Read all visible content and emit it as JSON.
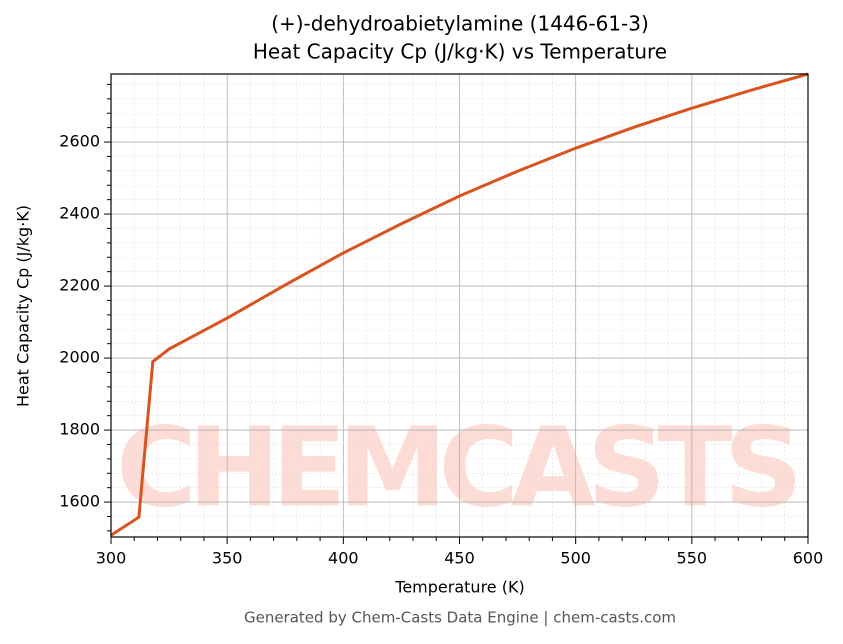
{
  "chart_data": {
    "type": "line",
    "title": [
      "(+)-dehydroabietylamine (1446-61-3)",
      "Heat Capacity Cp (J/kg·K) vs Temperature"
    ],
    "xlabel": "Temperature (K)",
    "ylabel": "Heat Capacity Cp (J/kg·K)",
    "footer": "Generated by Chem-Casts Data Engine | chem-casts.com",
    "watermark": "CHEMCASTS",
    "x": [
      300,
      312,
      318,
      325,
      350,
      375,
      400,
      425,
      450,
      475,
      500,
      525,
      550,
      575,
      600
    ],
    "series": [
      {
        "name": "Cp",
        "color": "#d9531e",
        "values": [
          1508,
          1558,
          1990,
          2025,
          2111,
          2203,
          2292,
          2373,
          2450,
          2519,
          2583,
          2641,
          2694,
          2743,
          2789
        ]
      }
    ],
    "xlim": [
      300,
      600
    ],
    "ylim": [
      1503,
      2789
    ],
    "xticks": [
      300,
      350,
      400,
      450,
      500,
      550,
      600
    ],
    "yticks": [
      1600,
      1800,
      2000,
      2200,
      2400,
      2600
    ],
    "xminorticks": [
      310,
      320,
      330,
      340,
      360,
      370,
      380,
      390,
      410,
      420,
      430,
      440,
      460,
      470,
      480,
      490,
      510,
      520,
      530,
      540,
      560,
      570,
      580,
      590
    ],
    "yminorticks": [
      1520,
      1560,
      1640,
      1680,
      1720,
      1760,
      1840,
      1880,
      1920,
      1960,
      2040,
      2080,
      2120,
      2160,
      2240,
      2280,
      2320,
      2360,
      2440,
      2480,
      2520,
      2560,
      2640,
      2680,
      2720,
      2760
    ],
    "grid": true,
    "minor_grid": true
  }
}
